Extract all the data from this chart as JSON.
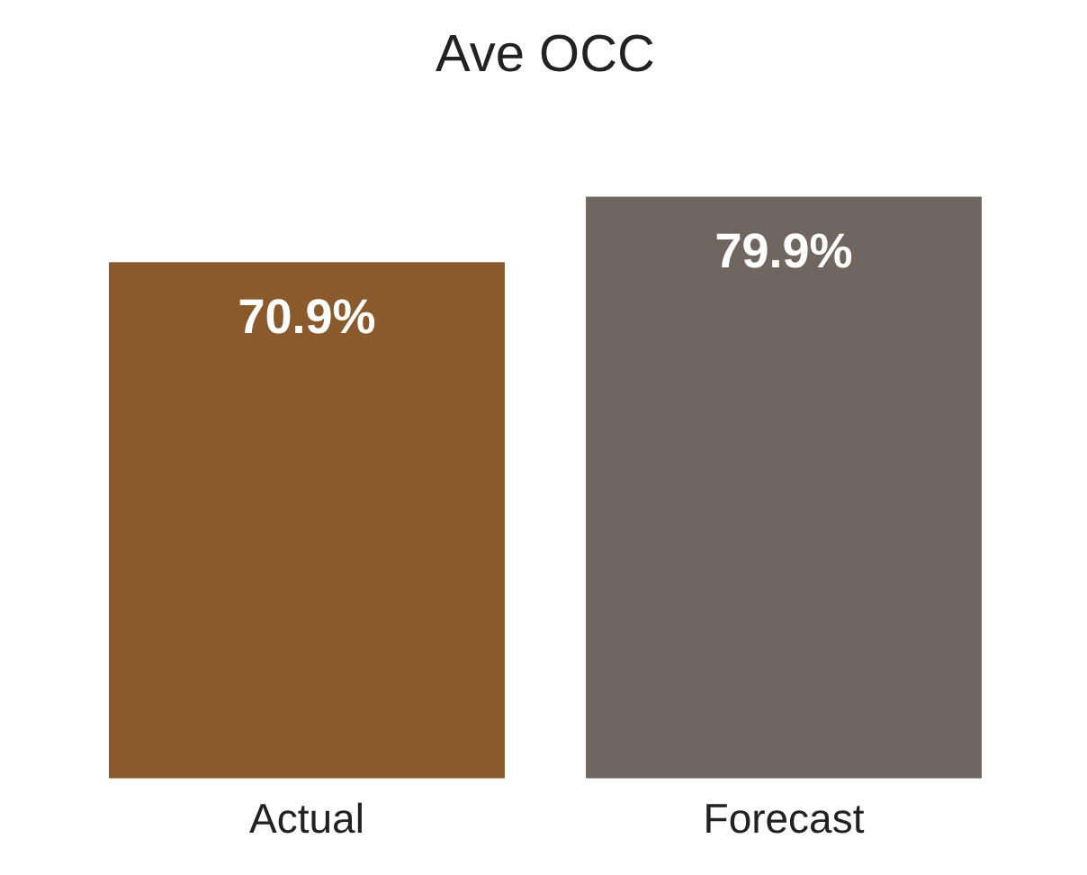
{
  "chart_data": {
    "type": "bar",
    "title": "Ave OCC",
    "categories": [
      "Actual",
      "Forecast"
    ],
    "values": [
      70.9,
      79.9
    ],
    "colors": [
      "#8a5a2c",
      "#6f6660"
    ],
    "value_labels": [
      "70.9%",
      "79.9%"
    ],
    "tick_labels": "x",
    "grid": false,
    "legend": false
  }
}
